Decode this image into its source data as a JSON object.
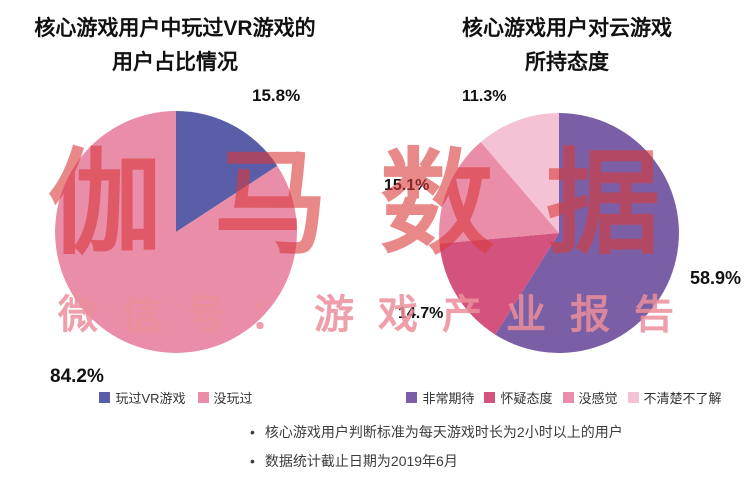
{
  "watermark": {
    "brand": "伽马数据",
    "subline": "微信号：游戏产业报告"
  },
  "notes": {
    "bullet": "•",
    "items": [
      "核心游戏用户判断标准为每天游戏时长为2小时以上的用户",
      "数据统计截止日期为2019年6月"
    ]
  },
  "chart_data": [
    {
      "type": "pie",
      "title": "核心游戏用户中玩过VR游戏的用户占比情况",
      "title_lines": [
        "核心游戏用户中玩过VR游戏的",
        "用户占比情况"
      ],
      "categories": [
        "玩过VR游戏",
        "没玩过"
      ],
      "values": [
        15.8,
        84.2
      ],
      "data_labels": [
        "15.8%",
        "84.2%"
      ],
      "colors": [
        "#5a5ea8",
        "#e98da9"
      ],
      "start_angle_deg": 0,
      "direction": "clockwise",
      "legend_position": "bottom"
    },
    {
      "type": "pie",
      "title": "核心游戏用户对云游戏所持态度",
      "title_lines": [
        "核心游戏用户对云游戏",
        "所持态度"
      ],
      "categories": [
        "非常期待",
        "怀疑态度",
        "没感觉",
        "不清楚不了解"
      ],
      "values": [
        58.9,
        14.7,
        15.1,
        11.3
      ],
      "data_labels": [
        "58.9%",
        "14.7%",
        "15.1%",
        "11.3%"
      ],
      "colors": [
        "#7b5fa6",
        "#d4537e",
        "#e98da9",
        "#f4c2d4"
      ],
      "start_angle_deg": 0,
      "direction": "clockwise",
      "legend_position": "bottom"
    }
  ]
}
